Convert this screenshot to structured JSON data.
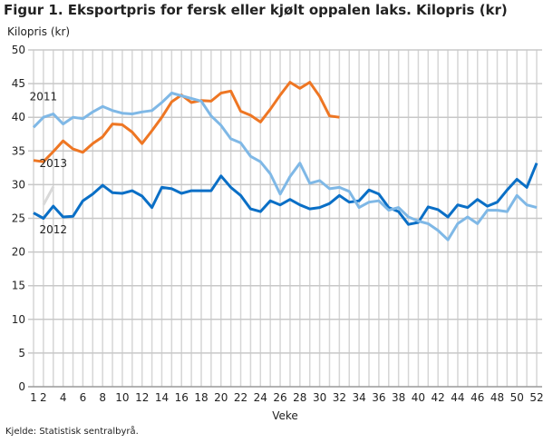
{
  "chart_data": {
    "type": "line",
    "title": "Figur 1. Eksportpris for fersk eller kjølt oppalen laks. Kilopris (kr)",
    "ylabel": "Kilopris (kr)",
    "xlabel": "Veke",
    "source": "Kjelde: Statistisk sentralbyrå.",
    "xlim": [
      1,
      52
    ],
    "ylim": [
      0,
      50
    ],
    "yticks": [
      0,
      5,
      10,
      15,
      20,
      25,
      30,
      35,
      40,
      45,
      50
    ],
    "xticks": [
      1,
      2,
      4,
      6,
      8,
      10,
      12,
      14,
      16,
      18,
      20,
      22,
      24,
      26,
      28,
      30,
      32,
      34,
      36,
      38,
      40,
      42,
      44,
      46,
      48,
      50,
      52
    ],
    "grid": true,
    "series": [
      {
        "name": "2011",
        "color": "#7fb8e6",
        "label_week": 2,
        "label_value": 42.5,
        "values": [
          38.5,
          40,
          40.5,
          39,
          40,
          39.8,
          40.8,
          41.6,
          41,
          40.6,
          40.5,
          40.8,
          41,
          42.2,
          43.6,
          43.2,
          42.8,
          42.4,
          40.2,
          38.8,
          36.8,
          36.2,
          34.2,
          33.4,
          31.6,
          28.6,
          31.2,
          33.2,
          30.2,
          30.6,
          29.4,
          29.6,
          29,
          26.6,
          27.4,
          27.6,
          26.2,
          26.6,
          25.2,
          24.6,
          24.2,
          23.2,
          21.8,
          24.2,
          25.2,
          24.2,
          26.2,
          26.2,
          26,
          28.4,
          27,
          26.6
        ]
      },
      {
        "name": "2013",
        "color": "#ee7623",
        "label_week": 3,
        "label_value": 32.6,
        "values": [
          33.6,
          33.4,
          34.9,
          36.5,
          35.3,
          34.8,
          36.1,
          37.1,
          39,
          38.9,
          37.8,
          36.1,
          38,
          40,
          42.3,
          43.3,
          42.2,
          42.5,
          42.4,
          43.6,
          43.9,
          40.9,
          40.3,
          39.3,
          41.2,
          43.3,
          45.2,
          44.3,
          45.2,
          43.1,
          40.2,
          40
        ]
      },
      {
        "name": "2012",
        "color": "#0a6fc6",
        "label_week": 3,
        "label_value": 22.8,
        "values": [
          25.8,
          25,
          26.8,
          25.2,
          25.3,
          27.6,
          28.6,
          29.9,
          28.8,
          28.7,
          29.1,
          28.3,
          26.6,
          29.6,
          29.4,
          28.7,
          29.1,
          29.1,
          29.1,
          31.3,
          29.6,
          28.4,
          26.4,
          26,
          27.6,
          27,
          27.8,
          27,
          26.4,
          26.6,
          27.2,
          28.4,
          27.4,
          27.6,
          29.2,
          28.6,
          26.6,
          26,
          24.1,
          24.4,
          26.7,
          26.3,
          25.2,
          27,
          26.6,
          27.8,
          26.8,
          27.4,
          29.2,
          30.8,
          29.6,
          33.2
        ]
      },
      {
        "color": "#d9d9d9",
        "start_week": 2,
        "values": [
          27,
          29.7
        ]
      }
    ]
  }
}
